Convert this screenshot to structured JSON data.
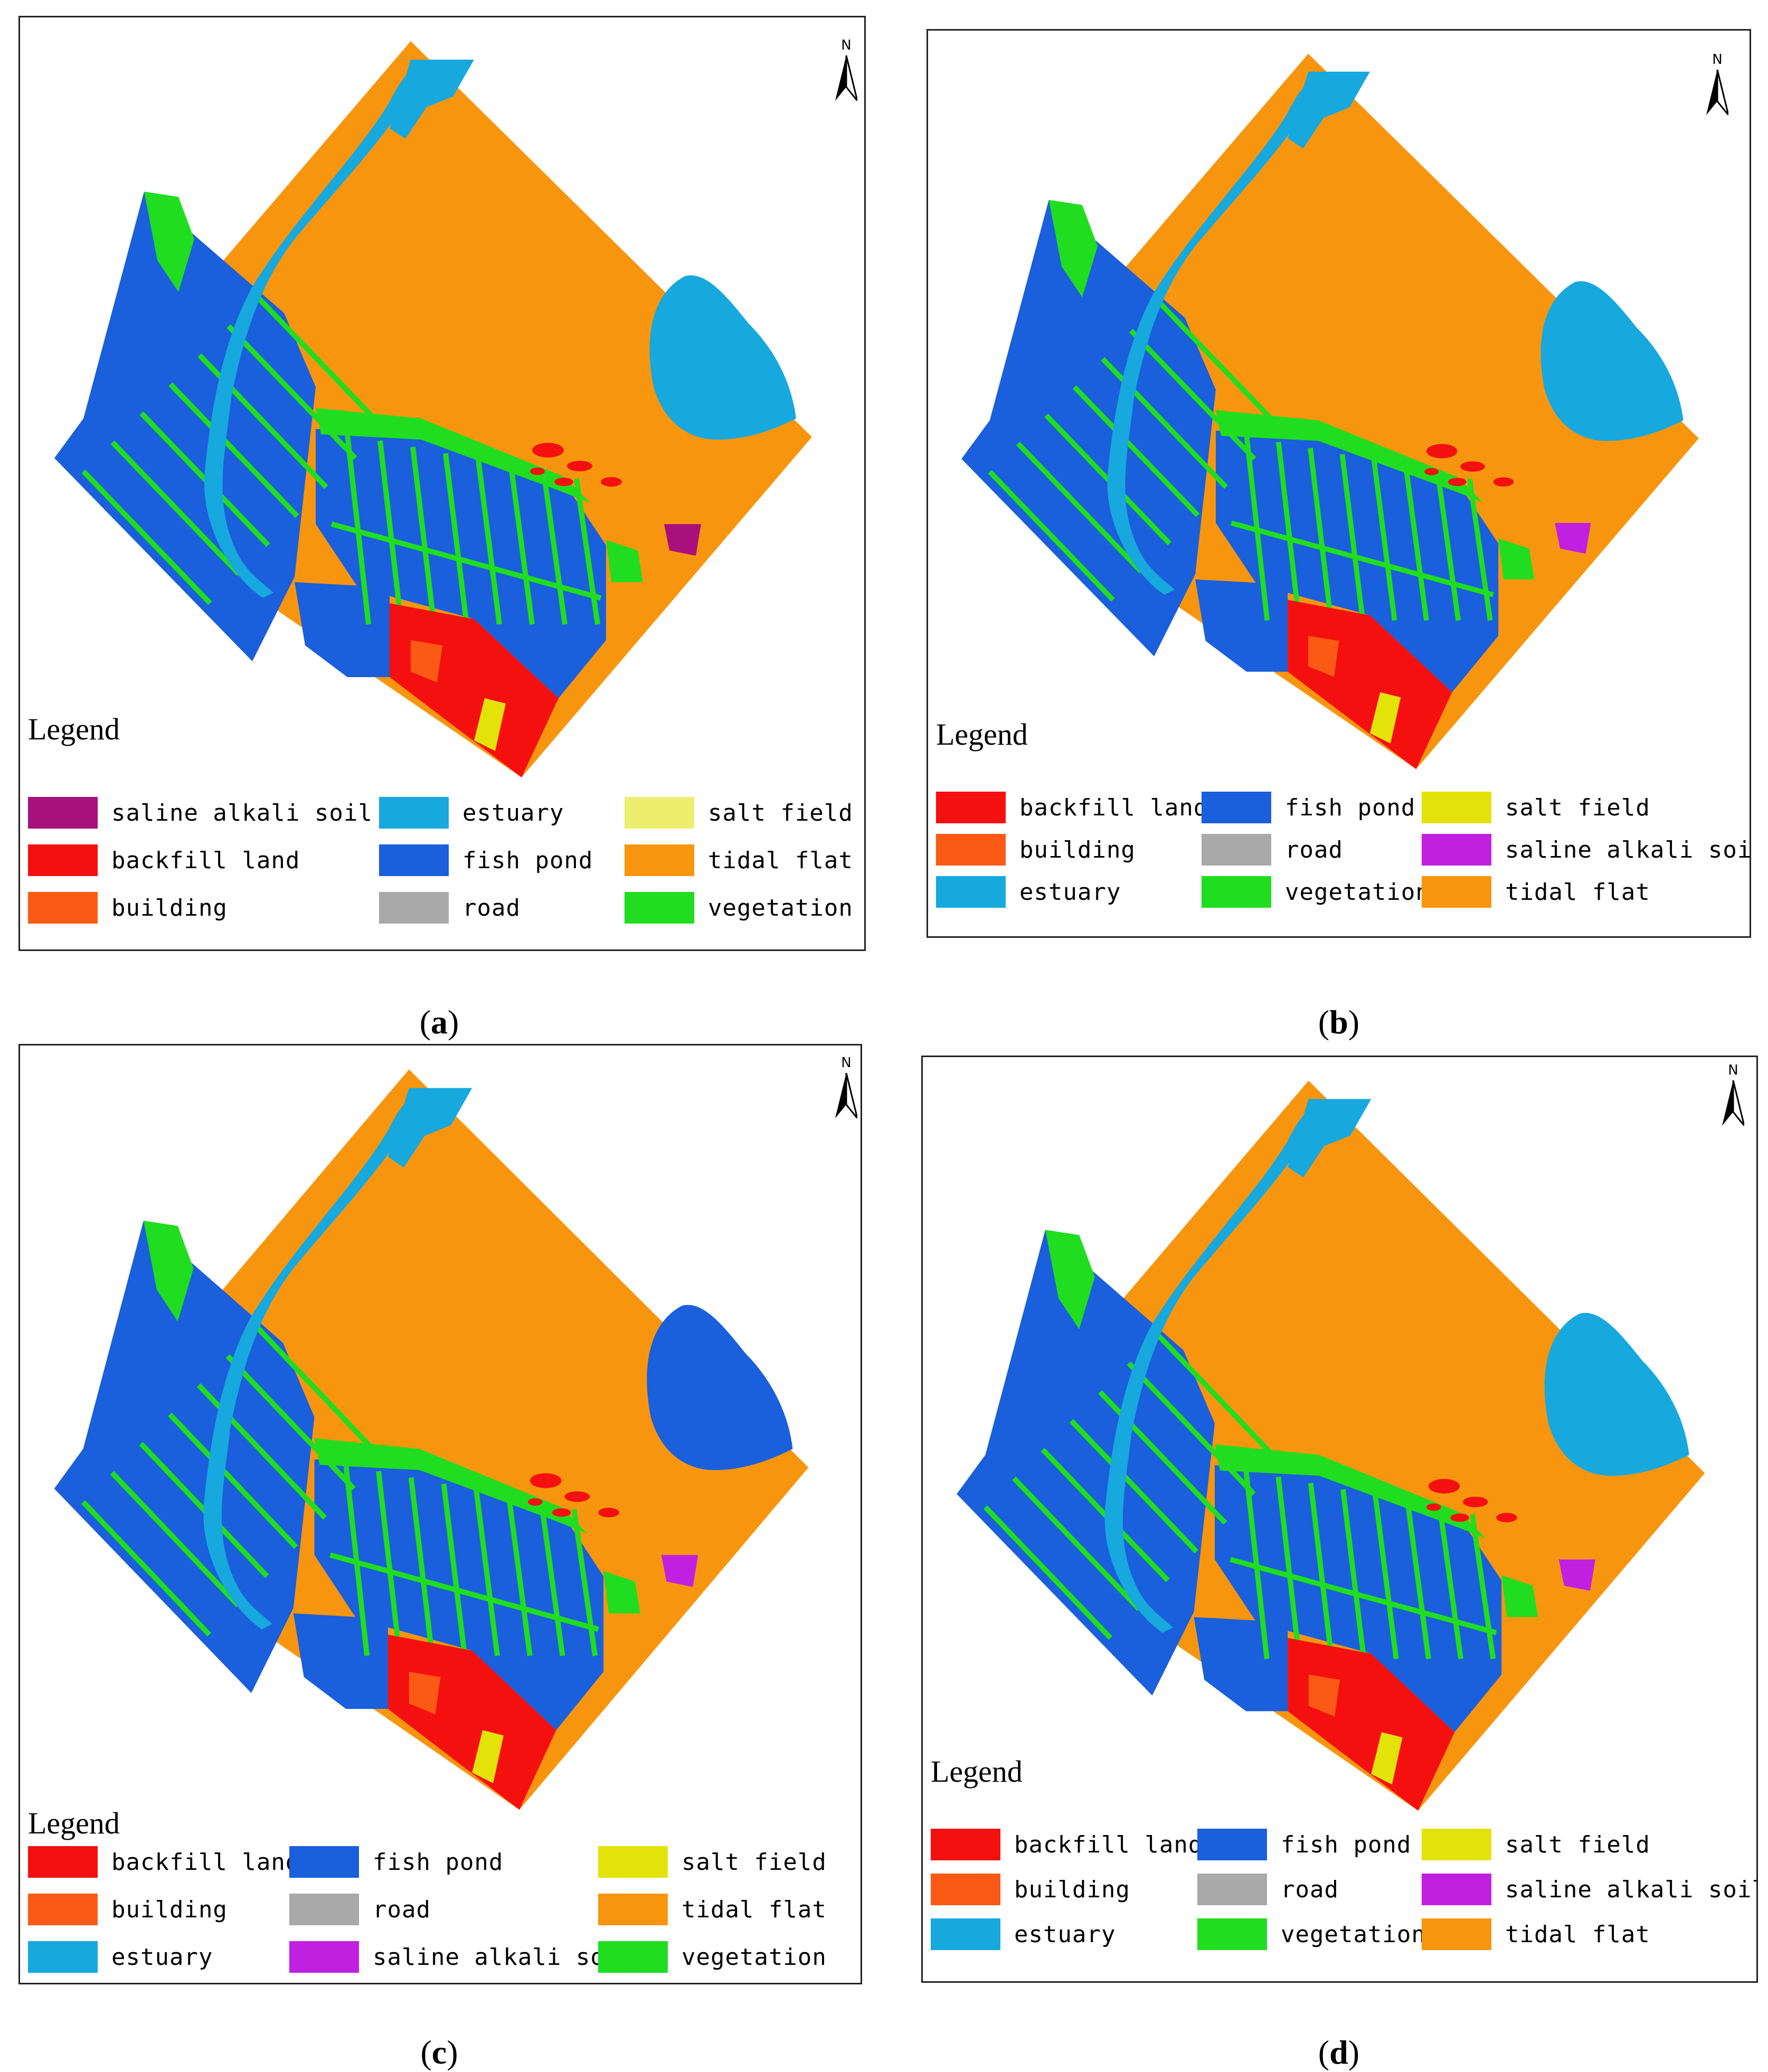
{
  "figure": {
    "panels": [
      {
        "id": "a",
        "caption_open": "(",
        "caption_letter": "a",
        "caption_close": ")",
        "north_label": "N",
        "legend_title": "Legend",
        "legend": [
          {
            "label": "saline alkali soil",
            "color": "#A8107C"
          },
          {
            "label": "backfill land",
            "color": "#F51010"
          },
          {
            "label": "building",
            "color": "#FA5A14"
          },
          {
            "label": "estuary",
            "color": "#17A8DE"
          },
          {
            "label": "fish pond",
            "color": "#1A5FDB"
          },
          {
            "label": "road",
            "color": "#A9A9A9"
          },
          {
            "label": "salt field",
            "color": "#EDEE6E"
          },
          {
            "label": "tidal flat",
            "color": "#F7960E"
          },
          {
            "label": "vegetation",
            "color": "#20DD20"
          }
        ]
      },
      {
        "id": "b",
        "caption_open": "(",
        "caption_letter": "b",
        "caption_close": ")",
        "north_label": "N",
        "legend_title": "Legend",
        "legend": [
          {
            "label": "backfill land",
            "color": "#F51010"
          },
          {
            "label": "building",
            "color": "#FA5A14"
          },
          {
            "label": "estuary",
            "color": "#17A8DE"
          },
          {
            "label": "fish pond",
            "color": "#1A5FDB"
          },
          {
            "label": "road",
            "color": "#A9A9A9"
          },
          {
            "label": "vegetation",
            "color": "#20DD20"
          },
          {
            "label": "salt field",
            "color": "#E3E30A"
          },
          {
            "label": "saline alkali soil",
            "color": "#C020E0"
          },
          {
            "label": "tidal flat",
            "color": "#F7960E"
          }
        ]
      },
      {
        "id": "c",
        "caption_open": "(",
        "caption_letter": "c",
        "caption_close": ")",
        "north_label": "N",
        "legend_title": "Legend",
        "legend": [
          {
            "label": "backfill land",
            "color": "#F51010"
          },
          {
            "label": "building",
            "color": "#FA5A14"
          },
          {
            "label": "estuary",
            "color": "#17A8DE"
          },
          {
            "label": "fish pond",
            "color": "#1A5FDB"
          },
          {
            "label": "road",
            "color": "#A9A9A9"
          },
          {
            "label": "saline alkali soil",
            "color": "#C020E0"
          },
          {
            "label": "salt field",
            "color": "#E3E30A"
          },
          {
            "label": "tidal flat",
            "color": "#F7960E"
          },
          {
            "label": "vegetation",
            "color": "#20DD20"
          }
        ]
      },
      {
        "id": "d",
        "caption_open": "(",
        "caption_letter": "d",
        "caption_close": ")",
        "north_label": "N",
        "legend_title": "Legend",
        "legend": [
          {
            "label": "backfill land",
            "color": "#F51010"
          },
          {
            "label": "building",
            "color": "#FA5A14"
          },
          {
            "label": "estuary",
            "color": "#17A8DE"
          },
          {
            "label": "fish pond",
            "color": "#1A5FDB"
          },
          {
            "label": "road",
            "color": "#A9A9A9"
          },
          {
            "label": "vegetation",
            "color": "#20DD20"
          },
          {
            "label": "salt field",
            "color": "#E3E30A"
          },
          {
            "label": "saline alkali soil",
            "color": "#C020E0"
          },
          {
            "label": "tidal flat",
            "color": "#F7960E"
          }
        ]
      }
    ],
    "colors": {
      "tidal_flat": "#F7960E",
      "estuary": "#17A8DE",
      "fish_pond": "#1A5FDB",
      "vegetation": "#20DD20",
      "backfill_land": "#F51010",
      "road": "#A9A9A9",
      "salt_field": "#E3E30A",
      "saline_alkali_soil": "#C020E0",
      "saline_alkali_soil_a": "#A8107C",
      "building": "#FA5A14"
    }
  }
}
